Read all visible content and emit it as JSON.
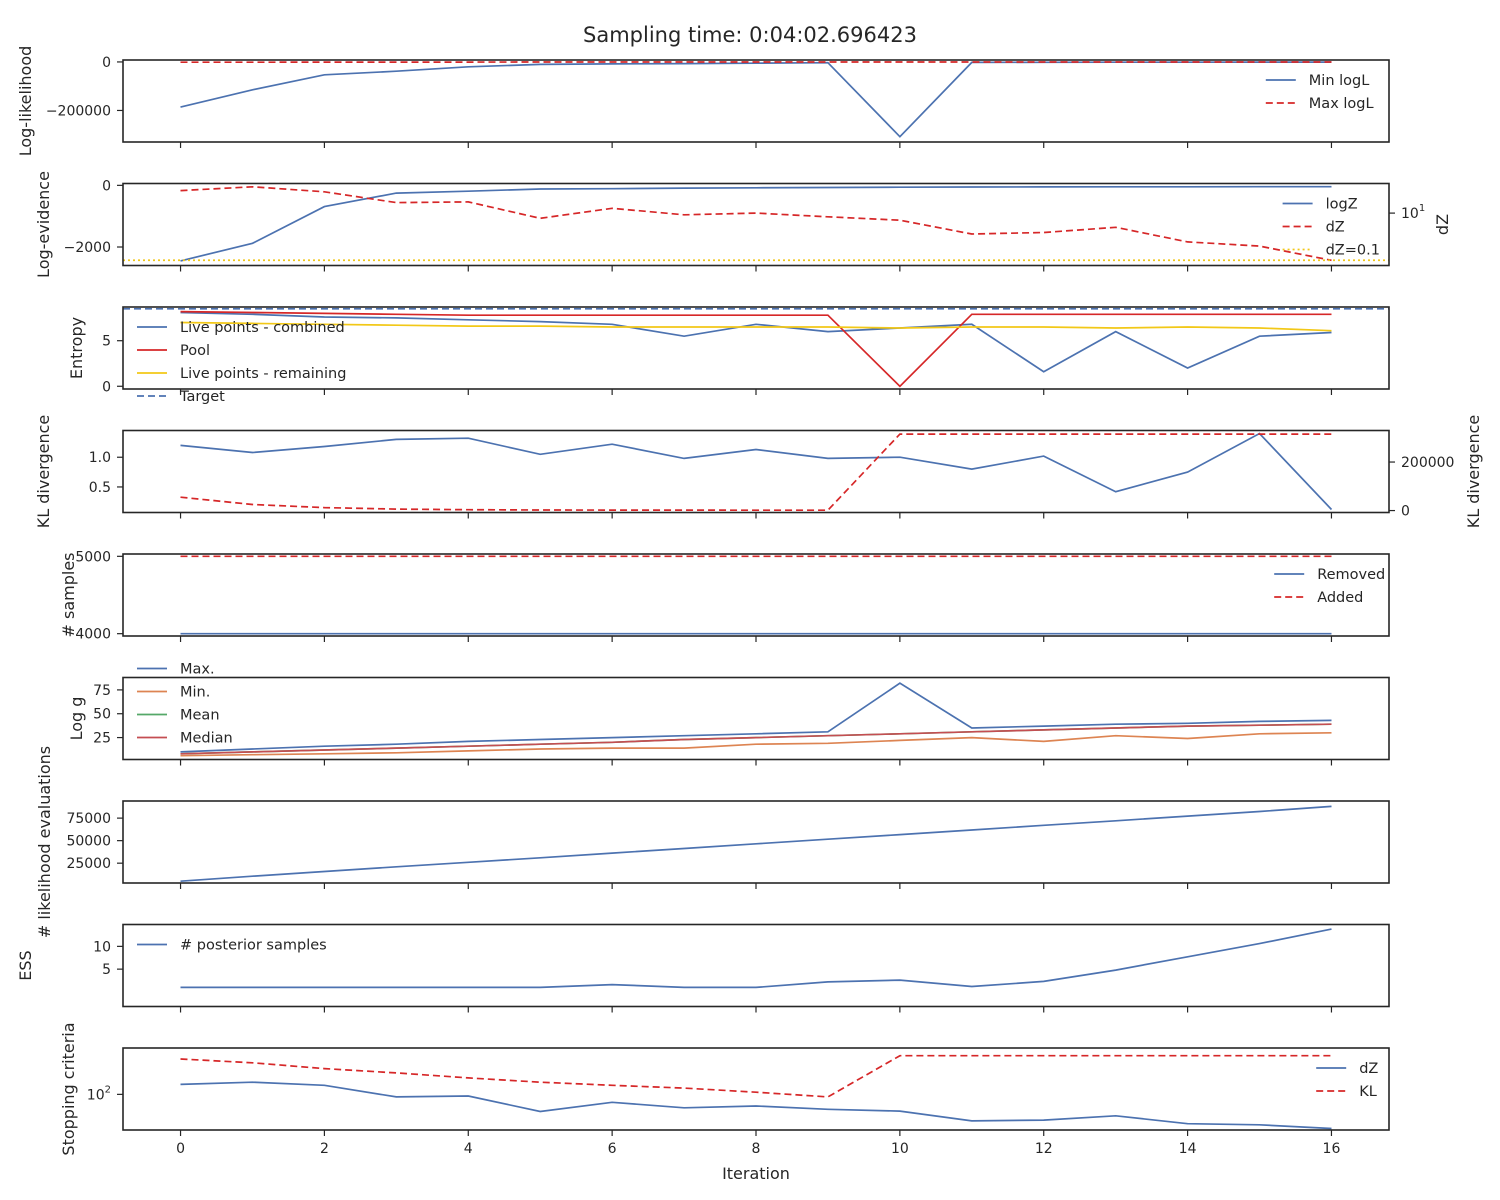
{
  "title": "Sampling time: 0:04:02.696423",
  "colors": {
    "blue": "#4c72b0",
    "red": "#d62728",
    "gold": "#f2c817",
    "orange": "#dd8452",
    "green": "#55a868",
    "brick": "#c44e52",
    "frame": "#262626"
  },
  "x_axis": {
    "label": "Iteration",
    "range": [
      -0.8,
      16.8
    ],
    "ticks": [
      0,
      2,
      4,
      6,
      8,
      10,
      12,
      14,
      16
    ],
    "tick_labels": [
      "0",
      "2",
      "4",
      "6",
      "8",
      "10",
      "12",
      "14",
      "16"
    ]
  },
  "chart_data": [
    {
      "id": "loglikelihood",
      "type": "line",
      "ylabel": "Log-likelihood",
      "ylim": [
        -330000,
        8000
      ],
      "yticks": [
        -200000,
        0
      ],
      "ytick_labels": [
        "−200000",
        "0"
      ],
      "legend_position": "right",
      "x": [
        0,
        1,
        2,
        3,
        4,
        5,
        6,
        7,
        8,
        9,
        10,
        11,
        12,
        13,
        14,
        15,
        16
      ],
      "series": [
        {
          "name": "Min logL",
          "color": "blue",
          "dash": "solid",
          "legend": true,
          "values": [
            -186000,
            -115000,
            -53000,
            -38000,
            -20000,
            -10000,
            -8000,
            -7000,
            -5000,
            -3000,
            -308000,
            -2000,
            -1500,
            -1200,
            -1000,
            -800,
            -600
          ]
        },
        {
          "name": "Max logL",
          "color": "red",
          "dash": "dashed",
          "legend": true,
          "values": [
            -1200,
            -900,
            -700,
            -600,
            -500,
            -400,
            -300,
            -300,
            -250,
            -200,
            -150,
            -120,
            -100,
            -80,
            -60,
            -50,
            -40
          ]
        }
      ]
    },
    {
      "id": "logevidence",
      "type": "line",
      "ylabel": "Log-evidence",
      "ylim": [
        -2600,
        60
      ],
      "yticks": [
        -2000,
        0
      ],
      "ytick_labels": [
        "−2000",
        "0"
      ],
      "legend_position": "right",
      "x": [
        0,
        1,
        2,
        3,
        4,
        5,
        6,
        7,
        8,
        9,
        10,
        11,
        12,
        13,
        14,
        15,
        16
      ],
      "series": [
        {
          "name": "logZ",
          "color": "blue",
          "dash": "solid",
          "legend": true,
          "values": [
            -2450,
            -1880,
            -690,
            -250,
            -190,
            -120,
            -110,
            -90,
            -80,
            -70,
            -60,
            -55,
            -50,
            -48,
            -46,
            -45,
            -44
          ]
        }
      ],
      "secondary": {
        "ylabel": "dZ",
        "scale": "log",
        "ylim": [
          0.06,
          180
        ],
        "yticks": [
          10
        ],
        "ytick_labels": [
          "10^1"
        ],
        "series": [
          {
            "name": "dZ",
            "color": "red",
            "dash": "dashed",
            "legend": true,
            "values": [
              90,
              130,
              80,
              28,
              30,
              6,
              16,
              8.5,
              10,
              7,
              5,
              1.3,
              1.5,
              2.5,
              0.6,
              0.4,
              0.1
            ]
          },
          {
            "name": "dZ=0.1",
            "color": "gold",
            "dash": "dotted",
            "legend": true,
            "hline": 0.1
          }
        ]
      }
    },
    {
      "id": "entropy",
      "type": "line",
      "ylabel": "Entropy",
      "ylim": [
        -0.3,
        8.7
      ],
      "yticks": [
        0,
        5
      ],
      "ytick_labels": [
        "0",
        "5"
      ],
      "legend_position": "left",
      "x": [
        0,
        1,
        2,
        3,
        4,
        5,
        6,
        7,
        8,
        9,
        10,
        11,
        12,
        13,
        14,
        15,
        16
      ],
      "series": [
        {
          "name": "Live points - combined",
          "color": "blue",
          "dash": "solid",
          "legend": true,
          "values": [
            8.1,
            7.9,
            7.6,
            7.5,
            7.3,
            7.1,
            6.8,
            5.5,
            6.8,
            6.0,
            6.4,
            6.8,
            1.6,
            6.0,
            2.0,
            5.5,
            5.9
          ]
        },
        {
          "name": "Pool",
          "color": "red",
          "dash": "solid",
          "legend": true,
          "values": [
            8.2,
            8.1,
            8.0,
            7.9,
            7.8,
            7.8,
            7.8,
            7.8,
            7.8,
            7.8,
            0.0,
            7.9,
            7.9,
            7.9,
            7.9,
            7.9,
            7.9
          ]
        },
        {
          "name": "Live points - remaining",
          "color": "gold",
          "dash": "solid",
          "legend": true,
          "values": [
            7.0,
            6.9,
            6.8,
            6.7,
            6.6,
            6.6,
            6.5,
            6.5,
            6.5,
            6.5,
            6.4,
            6.5,
            6.5,
            6.4,
            6.5,
            6.4,
            6.1
          ]
        },
        {
          "name": "Target",
          "color": "blue",
          "dash": "dashed",
          "legend": true,
          "hline": 8.5
        }
      ]
    },
    {
      "id": "kl",
      "type": "line",
      "ylabel": "KL divergence",
      "ylim": [
        0.07,
        1.45
      ],
      "yticks": [
        0.5,
        1.0
      ],
      "ytick_labels": [
        "0.5",
        "1.0"
      ],
      "x": [
        0,
        1,
        2,
        3,
        4,
        5,
        6,
        7,
        8,
        9,
        10,
        11,
        12,
        13,
        14,
        15,
        16
      ],
      "series": [
        {
          "name": "KL divergence",
          "color": "blue",
          "dash": "solid",
          "legend": false,
          "values": [
            1.2,
            1.08,
            1.18,
            1.3,
            1.32,
            1.05,
            1.22,
            0.98,
            1.13,
            0.98,
            1.0,
            0.8,
            1.02,
            0.42,
            0.75,
            1.4,
            0.12
          ]
        }
      ],
      "secondary": {
        "ylabel": "KL divergence",
        "scale": "linear",
        "ylim": [
          -8000,
          330000
        ],
        "yticks": [
          0,
          200000
        ],
        "ytick_labels": [
          "0",
          "200000"
        ],
        "series": [
          {
            "name": "KL divergence",
            "color": "red",
            "dash": "dashed",
            "legend": false,
            "values": [
              55000,
              25000,
              12000,
              6000,
              3500,
              2500,
              2000,
              1800,
              1600,
              1500,
              315000,
              315000,
              315000,
              315000,
              315000,
              315000,
              315000
            ]
          }
        ]
      }
    },
    {
      "id": "samples",
      "type": "line",
      "ylabel": "# samples",
      "ylim": [
        3970,
        5030
      ],
      "yticks": [
        4000,
        5000
      ],
      "ytick_labels": [
        "4000",
        "5000"
      ],
      "legend_position": "right",
      "x": [
        0,
        1,
        2,
        3,
        4,
        5,
        6,
        7,
        8,
        9,
        10,
        11,
        12,
        13,
        14,
        15,
        16
      ],
      "series": [
        {
          "name": "Removed",
          "color": "blue",
          "dash": "solid",
          "legend": true,
          "values": [
            4000,
            4000,
            4000,
            4000,
            4000,
            4000,
            4000,
            4000,
            4000,
            4000,
            4000,
            4000,
            4000,
            4000,
            4000,
            4000,
            4000
          ]
        },
        {
          "name": "Added",
          "color": "red",
          "dash": "dashed",
          "legend": true,
          "values": [
            5000,
            5000,
            5000,
            5000,
            5000,
            5000,
            5000,
            5000,
            5000,
            5000,
            5000,
            5000,
            5000,
            5000,
            5000,
            5000,
            5000
          ]
        }
      ]
    },
    {
      "id": "logg",
      "type": "line",
      "ylabel": "Log g",
      "ylim": [
        2,
        88
      ],
      "yticks": [
        25,
        50,
        75
      ],
      "ytick_labels": [
        "25",
        "50",
        "75"
      ],
      "legend_position": "left-outside-top",
      "x": [
        0,
        1,
        2,
        3,
        4,
        5,
        6,
        7,
        8,
        9,
        10,
        11,
        12,
        13,
        14,
        15,
        16
      ],
      "series": [
        {
          "name": "Max.",
          "color": "blue",
          "dash": "solid",
          "legend": true,
          "values": [
            10,
            13,
            16,
            18,
            21,
            23,
            25,
            27,
            29,
            31,
            82,
            35,
            37,
            39,
            40,
            42,
            43
          ]
        },
        {
          "name": "Min.",
          "color": "orange",
          "dash": "solid",
          "legend": true,
          "values": [
            6,
            7,
            8,
            9,
            11,
            13,
            14,
            14,
            18,
            19,
            22,
            25,
            21,
            27,
            24,
            29,
            30
          ]
        },
        {
          "name": "Mean",
          "color": "green",
          "dash": "solid",
          "legend": true,
          "values": [
            8,
            10,
            12,
            14,
            16,
            18,
            20,
            23,
            25,
            27,
            29,
            31,
            33,
            35,
            37,
            38,
            39
          ]
        },
        {
          "name": "Median",
          "color": "brick",
          "dash": "solid",
          "legend": true,
          "values": [
            8,
            10,
            12,
            14,
            16,
            18,
            20,
            23,
            25,
            27,
            29,
            31,
            33,
            35,
            37,
            38,
            39
          ]
        }
      ]
    },
    {
      "id": "likelihoodevals",
      "type": "line",
      "ylabel": "# likelihood evaluations",
      "ylim": [
        3000,
        94000
      ],
      "yticks": [
        25000,
        50000,
        75000
      ],
      "ytick_labels": [
        "25000",
        "50000",
        "75000"
      ],
      "x": [
        0,
        1,
        2,
        3,
        4,
        5,
        6,
        7,
        8,
        9,
        10,
        11,
        12,
        13,
        14,
        15,
        16
      ],
      "series": [
        {
          "name": "# likelihood evaluations",
          "color": "blue",
          "dash": "solid",
          "legend": false,
          "values": [
            5000,
            10500,
            15800,
            21000,
            26000,
            31000,
            36200,
            41300,
            46500,
            51600,
            56700,
            61800,
            67000,
            72000,
            77200,
            82300,
            88000
          ]
        }
      ]
    },
    {
      "id": "ess",
      "type": "line",
      "ylabel": "ESS",
      "ylim": [
        -3.2,
        14.8
      ],
      "yticks": [
        5,
        10
      ],
      "ytick_labels": [
        "5",
        "10"
      ],
      "legend_position": "left",
      "x": [
        0,
        1,
        2,
        3,
        4,
        5,
        6,
        7,
        8,
        9,
        10,
        11,
        12,
        13,
        14,
        15,
        16
      ],
      "series": [
        {
          "name": "# posterior samples",
          "color": "blue",
          "dash": "solid",
          "legend": true,
          "values": [
            1.0,
            1.0,
            1.0,
            1.0,
            1.0,
            1.0,
            1.6,
            1.0,
            1.0,
            2.2,
            2.6,
            1.2,
            2.3,
            4.8,
            7.7,
            10.6,
            13.8
          ]
        }
      ]
    },
    {
      "id": "stopping",
      "type": "line",
      "ylabel": "Stopping criteria",
      "scale": "log",
      "ylim": [
        10,
        2000
      ],
      "yticks": [
        100
      ],
      "ytick_labels": [
        "10^2"
      ],
      "legend_position": "right",
      "x": [
        0,
        1,
        2,
        3,
        4,
        5,
        6,
        7,
        8,
        9,
        10,
        11,
        12,
        13,
        14,
        15,
        16
      ],
      "series": [
        {
          "name": "dZ",
          "color": "blue",
          "dash": "solid",
          "legend": true,
          "values": [
            190,
            220,
            180,
            85,
            90,
            33,
            60,
            42,
            47,
            38,
            34,
            18,
            19,
            25,
            15,
            14,
            11
          ]
        },
        {
          "name": "KL",
          "color": "red",
          "dash": "dashed",
          "legend": true,
          "values": [
            980,
            770,
            530,
            400,
            290,
            220,
            180,
            150,
            115,
            85,
            1220,
            1220,
            1220,
            1220,
            1220,
            1220,
            1220
          ]
        }
      ]
    }
  ]
}
